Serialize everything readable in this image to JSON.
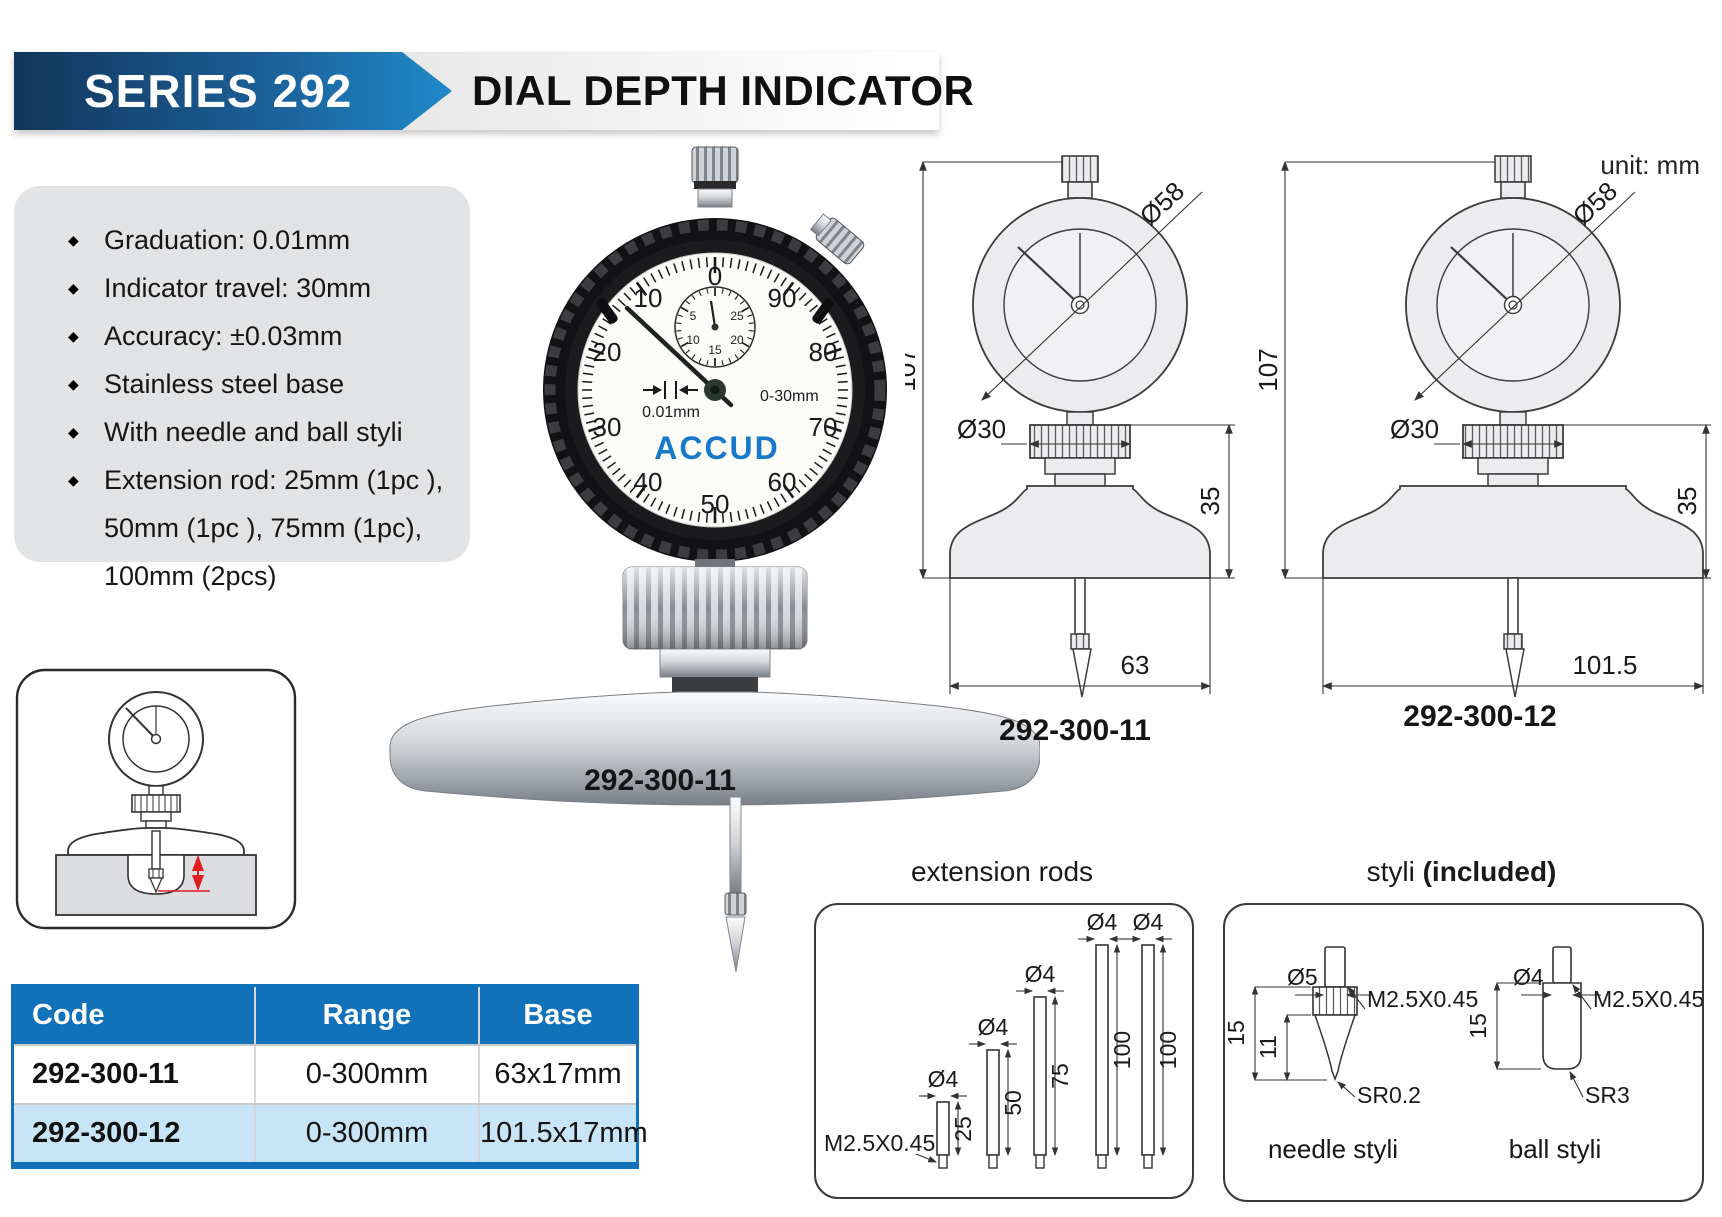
{
  "header": {
    "series": "SERIES 292",
    "title": "DIAL DEPTH INDICATOR"
  },
  "unit_note": "unit: mm",
  "features": {
    "items": [
      "Graduation: 0.01mm",
      "Indicator travel: 30mm",
      "Accuracy: ±0.03mm",
      "Stainless steel base",
      "With needle and ball styli",
      "Extension rod: 25mm (1pc ), 50mm (1pc ), 75mm (1pc), 100mm (2pcs)"
    ]
  },
  "photo": {
    "label": "292-300-11",
    "brand": "ACCUD",
    "brand_color": "#1779c8",
    "graduation": "0.01mm",
    "range": "0-30mm",
    "dial_numbers": [
      "0",
      "10",
      "20",
      "30",
      "40",
      "50",
      "60",
      "70",
      "80",
      "90"
    ],
    "subdial_numbers": [
      "5",
      "10",
      "15",
      "20",
      "25"
    ]
  },
  "drawings": {
    "d1": {
      "label": "292-300-11",
      "height": "107",
      "dial_d": "Ø58",
      "nut_d": "Ø30",
      "base_h": "35",
      "base_w": "63"
    },
    "d2": {
      "label": "292-300-12",
      "height": "107",
      "dial_d": "Ø58",
      "nut_d": "Ø30",
      "base_h": "35",
      "base_w": "101.5"
    }
  },
  "table": {
    "headers": [
      "Code",
      "Range",
      "Base"
    ],
    "rows": [
      {
        "code": "292-300-11",
        "range": "0-300mm",
        "base": "63x17mm"
      },
      {
        "code": "292-300-12",
        "range": "0-300mm",
        "base": "101.5x17mm"
      }
    ],
    "header_bg": "#1272b9",
    "alt_row_bg": "#c8e5f8"
  },
  "rods": {
    "title": "extension rods",
    "thread": "M2.5X0.45",
    "items": [
      {
        "d": "Ø4",
        "len": "25"
      },
      {
        "d": "Ø4",
        "len": "50"
      },
      {
        "d": "Ø4",
        "len": "75"
      },
      {
        "d": "Ø4",
        "len": "100"
      },
      {
        "d": "Ø4",
        "len": "100"
      }
    ]
  },
  "styli": {
    "title": "styli ",
    "title_bold": "(included)",
    "needle": {
      "caption": "needle styli",
      "d": "Ø5",
      "thread": "M2.5X0.45",
      "len": "15",
      "len2": "11",
      "tip": "SR0.2"
    },
    "ball": {
      "caption": "ball styli",
      "d": "Ø4",
      "thread": "M2.5X0.45",
      "len": "15",
      "tip": "SR3"
    }
  }
}
